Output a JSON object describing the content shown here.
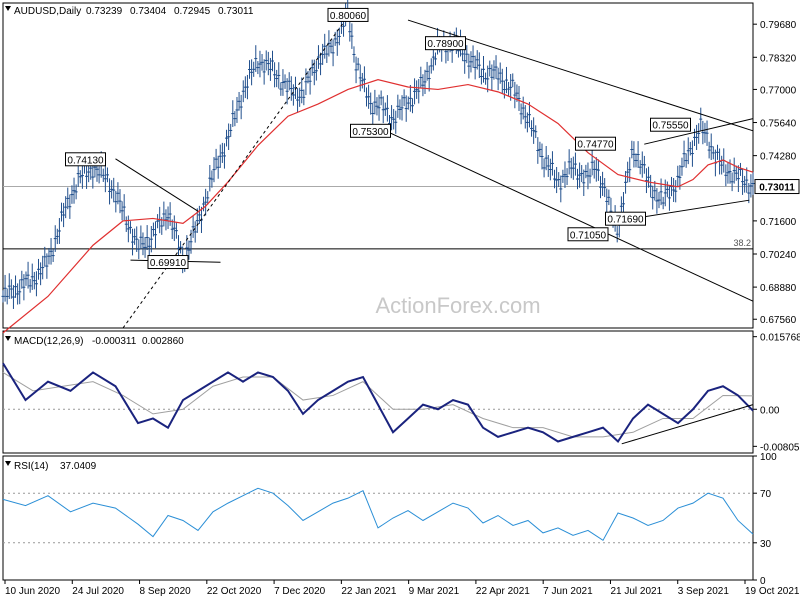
{
  "chart_data": {
    "type": "line",
    "symbol": "AUDUSD,Daily",
    "ohlc": [
      "0.73239",
      "0.73404",
      "0.72945",
      "0.73011"
    ],
    "watermark": "ActionForex.com",
    "colors": {
      "price": "#1f4e8c",
      "ma": "#e03030",
      "macd": "#1a237e",
      "signal": "#a0a0a0",
      "rsi": "#2b8fd6",
      "trendline": "#000000"
    },
    "x_ticks": [
      "10 Jun 2020",
      "24 Jul 2020",
      "8 Sep 2020",
      "22 Oct 2020",
      "7 Dec 2020",
      "22 Jan 2021",
      "9 Mar 2021",
      "22 Apr 2021",
      "7 Jun 2021",
      "21 Jul 2021",
      "3 Sep 2021",
      "19 Oct 2021"
    ],
    "price": {
      "ylim": [
        0.672,
        0.8055
      ],
      "y_ticks": [
        "0.79680",
        "0.78320",
        "0.77000",
        "0.75640",
        "0.74280",
        "0.71600",
        "0.70240",
        "0.68880",
        "0.67560"
      ],
      "last": "0.73011",
      "fib_label": "38.2",
      "fib_level": 0.7045,
      "ma_legend": "",
      "series": [
        {
          "name": "close",
          "x": [
            0,
            0.04,
            0.06,
            0.08,
            0.1,
            0.12,
            0.14,
            0.16,
            0.18,
            0.2,
            0.22,
            0.24,
            0.26,
            0.27,
            0.28,
            0.3,
            0.32,
            0.34,
            0.36,
            0.38,
            0.4,
            0.42,
            0.44,
            0.46,
            0.47,
            0.48,
            0.49,
            0.5,
            0.52,
            0.54,
            0.56,
            0.58,
            0.6,
            0.62,
            0.64,
            0.66,
            0.68,
            0.7,
            0.72,
            0.74,
            0.76,
            0.78,
            0.79,
            0.8,
            0.81,
            0.82,
            0.83,
            0.84,
            0.85,
            0.86,
            0.87,
            0.88,
            0.89,
            0.9,
            0.91,
            0.92,
            0.93,
            0.94,
            0.95,
            0.96,
            0.97,
            0.98,
            1.0
          ],
          "y": [
            0.685,
            0.692,
            0.699,
            0.718,
            0.733,
            0.738,
            0.733,
            0.72,
            0.705,
            0.71,
            0.72,
            0.7,
            0.715,
            0.725,
            0.735,
            0.75,
            0.769,
            0.782,
            0.778,
            0.77,
            0.768,
            0.782,
            0.788,
            0.8006,
            0.782,
            0.772,
            0.764,
            0.764,
            0.758,
            0.765,
            0.772,
            0.787,
            0.789,
            0.783,
            0.777,
            0.776,
            0.77,
            0.758,
            0.742,
            0.732,
            0.738,
            0.733,
            0.74,
            0.73,
            0.72,
            0.713,
            0.729,
            0.746,
            0.74,
            0.732,
            0.727,
            0.724,
            0.729,
            0.732,
            0.742,
            0.748,
            0.754,
            0.75,
            0.742,
            0.738,
            0.736,
            0.734,
            0.7301
          ]
        },
        {
          "name": "ma",
          "x": [
            0,
            0.06,
            0.12,
            0.16,
            0.2,
            0.24,
            0.27,
            0.3,
            0.34,
            0.38,
            0.42,
            0.46,
            0.5,
            0.54,
            0.58,
            0.62,
            0.66,
            0.7,
            0.74,
            0.78,
            0.82,
            0.86,
            0.88,
            0.9,
            0.92,
            0.94,
            0.96,
            0.98,
            1.0
          ],
          "y": [
            0.67,
            0.685,
            0.706,
            0.716,
            0.717,
            0.715,
            0.722,
            0.732,
            0.747,
            0.759,
            0.764,
            0.77,
            0.774,
            0.771,
            0.77,
            0.772,
            0.769,
            0.764,
            0.756,
            0.744,
            0.735,
            0.732,
            0.731,
            0.73,
            0.733,
            0.739,
            0.741,
            0.738,
            0.736
          ]
        }
      ],
      "annotations": [
        {
          "text": "0.80060",
          "x": 0.46,
          "y": 0.8006
        },
        {
          "text": "0.78900",
          "x": 0.59,
          "y": 0.789
        },
        {
          "text": "0.75300",
          "x": 0.49,
          "y": 0.753
        },
        {
          "text": "0.74130",
          "x": 0.11,
          "y": 0.7413
        },
        {
          "text": "0.69910",
          "x": 0.22,
          "y": 0.6991
        },
        {
          "text": "0.74770",
          "x": 0.79,
          "y": 0.7477
        },
        {
          "text": "0.75550",
          "x": 0.89,
          "y": 0.7555
        },
        {
          "text": "0.71690",
          "x": 0.83,
          "y": 0.7169
        },
        {
          "text": "0.71050",
          "x": 0.78,
          "y": 0.7105
        }
      ]
    },
    "macd": {
      "legend": "MACD(12,26,9)",
      "legend_values": [
        "-0.000311",
        "0.002860"
      ],
      "ylim": [
        -0.0095,
        0.017
      ],
      "y_ticks": [
        "0.015768",
        "0.00",
        "-0.008053"
      ],
      "last": "0.00",
      "series": [
        {
          "name": "macd",
          "x": [
            0,
            0.03,
            0.06,
            0.09,
            0.12,
            0.15,
            0.18,
            0.2,
            0.22,
            0.24,
            0.26,
            0.28,
            0.3,
            0.32,
            0.34,
            0.36,
            0.38,
            0.4,
            0.42,
            0.44,
            0.46,
            0.48,
            0.5,
            0.52,
            0.54,
            0.56,
            0.58,
            0.6,
            0.62,
            0.64,
            0.66,
            0.68,
            0.7,
            0.72,
            0.74,
            0.76,
            0.78,
            0.8,
            0.82,
            0.84,
            0.86,
            0.88,
            0.9,
            0.92,
            0.94,
            0.96,
            0.98,
            1.0
          ],
          "y": [
            0.01,
            0.002,
            0.006,
            0.004,
            0.008,
            0.005,
            -0.003,
            -0.002,
            -0.004,
            0.002,
            0.004,
            0.006,
            0.008,
            0.006,
            0.008,
            0.007,
            0.004,
            -0.001,
            0.002,
            0.004,
            0.006,
            0.007,
            0.001,
            -0.005,
            -0.002,
            0.001,
            0.0,
            0.002,
            0.001,
            -0.004,
            -0.006,
            -0.005,
            -0.004,
            -0.005,
            -0.007,
            -0.006,
            -0.005,
            -0.004,
            -0.007,
            -0.002,
            0.001,
            -0.001,
            -0.003,
            0.0,
            0.004,
            0.005,
            0.003,
            -0.0003
          ]
        },
        {
          "name": "signal",
          "x": [
            0,
            0.04,
            0.08,
            0.12,
            0.16,
            0.2,
            0.24,
            0.28,
            0.32,
            0.36,
            0.4,
            0.44,
            0.48,
            0.52,
            0.56,
            0.6,
            0.64,
            0.68,
            0.72,
            0.76,
            0.8,
            0.84,
            0.88,
            0.92,
            0.96,
            1.0
          ],
          "y": [
            0.008,
            0.004,
            0.005,
            0.006,
            0.003,
            -0.001,
            0.0,
            0.005,
            0.007,
            0.007,
            0.002,
            0.003,
            0.006,
            0.0,
            0.0,
            0.001,
            -0.002,
            -0.004,
            -0.004,
            -0.006,
            -0.006,
            -0.005,
            -0.002,
            -0.002,
            0.003,
            0.0029
          ]
        }
      ]
    },
    "rsi": {
      "legend": "RSI(14)",
      "legend_value": "37.0409",
      "ylim": [
        0,
        100
      ],
      "y_ticks": [
        "100",
        "70",
        "30",
        "0"
      ],
      "levels": [
        70,
        30
      ],
      "series": [
        {
          "name": "rsi",
          "x": [
            0,
            0.03,
            0.06,
            0.09,
            0.12,
            0.15,
            0.18,
            0.2,
            0.22,
            0.24,
            0.26,
            0.28,
            0.3,
            0.32,
            0.34,
            0.36,
            0.38,
            0.4,
            0.42,
            0.44,
            0.46,
            0.48,
            0.5,
            0.52,
            0.54,
            0.56,
            0.58,
            0.6,
            0.62,
            0.64,
            0.66,
            0.68,
            0.7,
            0.72,
            0.74,
            0.76,
            0.78,
            0.8,
            0.82,
            0.84,
            0.86,
            0.88,
            0.9,
            0.92,
            0.94,
            0.96,
            0.98,
            1.0
          ],
          "y": [
            65,
            60,
            68,
            55,
            62,
            58,
            45,
            35,
            52,
            48,
            40,
            55,
            62,
            68,
            74,
            70,
            60,
            48,
            55,
            62,
            66,
            72,
            42,
            50,
            56,
            48,
            55,
            62,
            58,
            46,
            52,
            44,
            48,
            38,
            42,
            36,
            40,
            32,
            54,
            50,
            44,
            48,
            58,
            62,
            70,
            66,
            48,
            37
          ]
        }
      ]
    }
  }
}
